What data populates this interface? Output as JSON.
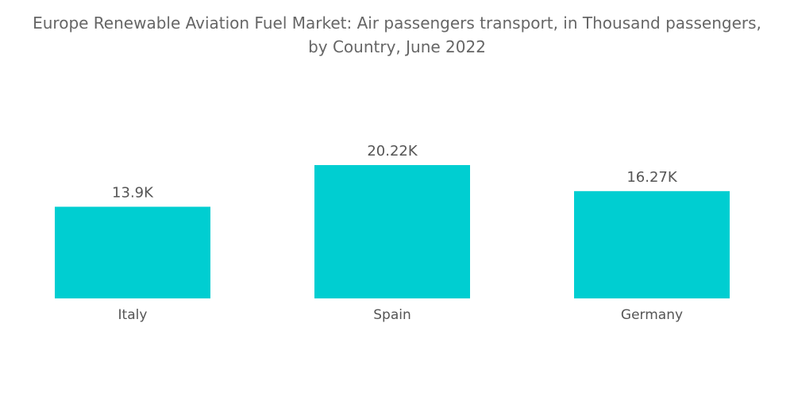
{
  "chart_data": {
    "type": "bar",
    "title_line1": "Europe Renewable Aviation Fuel Market: Air passengers transport, in Thousand passengers,",
    "title_line2": "by Country, June 2022",
    "categories": [
      "Italy",
      "Spain",
      "Germany"
    ],
    "values": [
      13.9,
      20.22,
      16.27
    ],
    "value_labels": [
      "13.9K",
      "20.22K",
      "16.27K"
    ],
    "xlabel": "",
    "ylabel": "",
    "ylim": [
      0,
      20.22
    ],
    "grid": false,
    "legend": "none",
    "bar_color": "#00CED1"
  }
}
